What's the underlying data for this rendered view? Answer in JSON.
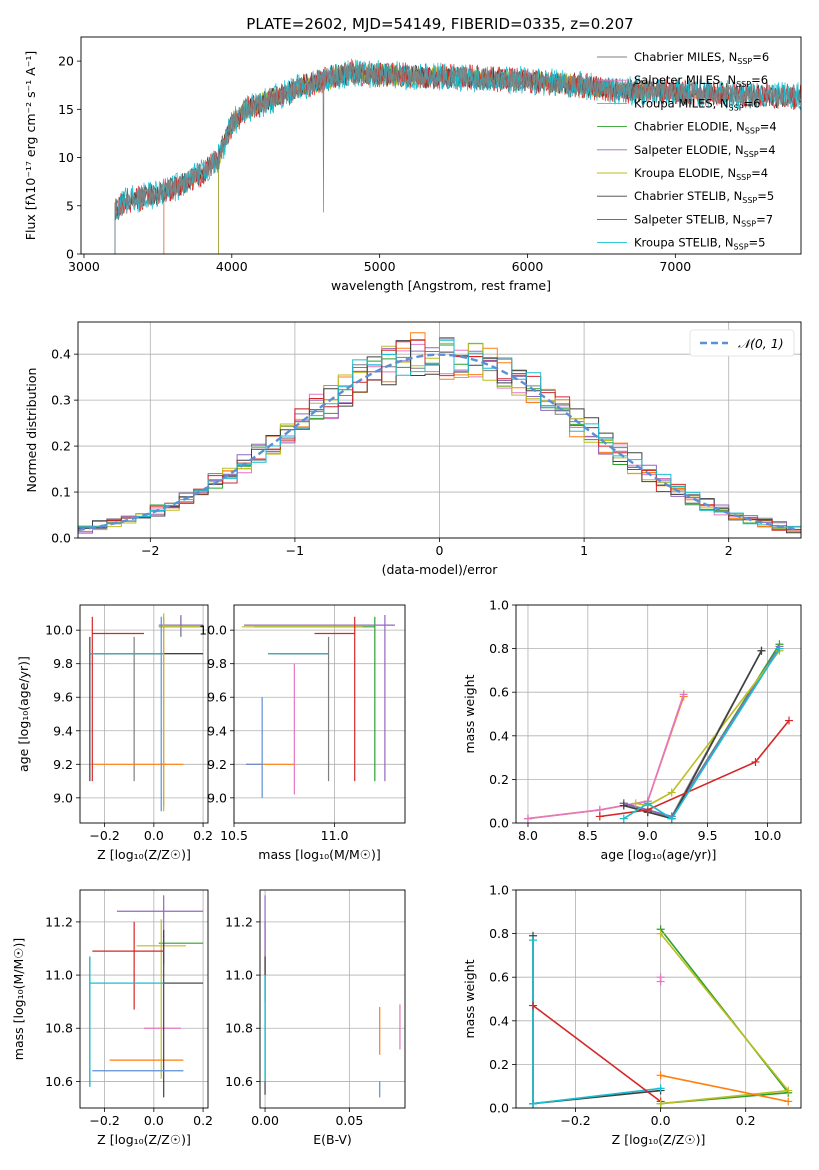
{
  "figure_title": "PLATE=2602, MJD=54149, FIBERID=0335, z=0.207",
  "colors": {
    "Chabrier MILES": "#7f7f7f",
    "Salpeter MILES": "#e377c2",
    "Kroupa MILES": "#ff7f0e",
    "Chabrier ELODIE": "#2ca02c",
    "Salpeter ELODIE": "#9467bd",
    "Kroupa ELODIE": "#bcbd22",
    "Chabrier STELIB": "#404040",
    "Salpeter STELIB": "#d62728",
    "Kroupa STELIB": "#17becf",
    "normal": "#5b8fd6"
  },
  "chart_data": [
    {
      "id": "spectrum",
      "type": "line",
      "xlabel": "wavelength [Angstrom, rest frame]",
      "ylabel": "Flux [fλ10⁻¹⁷ erg cm⁻² s⁻¹ A⁻¹]",
      "xlim": [
        2980,
        7850
      ],
      "ylim": [
        0,
        22.5
      ],
      "xticks": [
        3000,
        4000,
        5000,
        6000,
        7000
      ],
      "yticks": [
        0,
        5,
        10,
        15,
        20
      ],
      "grid": false,
      "legend_position": "upper-right",
      "legend": [
        {
          "key": "Chabrier MILES",
          "label": "Chabrier MILES, N",
          "sub": "SSP",
          "suffix": "=6"
        },
        {
          "key": "Salpeter MILES",
          "label": "Salpeter MILES, N",
          "sub": "SSP",
          "suffix": "=6"
        },
        {
          "key": "Kroupa MILES",
          "label": "Kroupa MILES, N",
          "sub": "SSP",
          "suffix": "=6"
        },
        {
          "key": "Chabrier ELODIE",
          "label": "Chabrier ELODIE, N",
          "sub": "SSP",
          "suffix": "=4"
        },
        {
          "key": "Salpeter ELODIE",
          "label": "Salpeter ELODIE, N",
          "sub": "SSP",
          "suffix": "=4"
        },
        {
          "key": "Kroupa ELODIE",
          "label": "Kroupa ELODIE, N",
          "sub": "SSP",
          "suffix": "=4"
        },
        {
          "key": "Chabrier STELIB",
          "label": "Chabrier STELIB, N",
          "sub": "SSP",
          "suffix": "=5"
        },
        {
          "key": "Salpeter STELIB",
          "label": "Salpeter STELIB, N",
          "sub": "SSP",
          "suffix": "=7"
        },
        {
          "key": "Kroupa STELIB",
          "label": "Kroupa STELIB, N",
          "sub": "SSP",
          "suffix": "=5"
        }
      ],
      "continuum": [
        [
          3210,
          4.6
        ],
        [
          3300,
          5.6
        ],
        [
          3500,
          6.2
        ],
        [
          3600,
          6.8
        ],
        [
          3700,
          7.5
        ],
        [
          3800,
          8.4
        ],
        [
          3900,
          9.6
        ],
        [
          3950,
          11.5
        ],
        [
          4000,
          13.5
        ],
        [
          4100,
          15.0
        ],
        [
          4300,
          16.2
        ],
        [
          4500,
          17.5
        ],
        [
          4800,
          18.8
        ],
        [
          5000,
          18.6
        ],
        [
          5300,
          18.4
        ],
        [
          5600,
          18.3
        ],
        [
          6000,
          18.0
        ],
        [
          6300,
          17.6
        ],
        [
          6600,
          17.0
        ],
        [
          7000,
          16.8
        ],
        [
          7400,
          16.5
        ],
        [
          7850,
          16.3
        ]
      ],
      "model_start": {
        "Chabrier MILES": 3540,
        "Salpeter MILES": 3540,
        "Kroupa MILES": 3540,
        "Chabrier ELODIE": 3910,
        "Salpeter ELODIE": 3910,
        "Kroupa ELODIE": 3910,
        "Chabrier STELIB": 3210,
        "Salpeter STELIB": 3210,
        "Kroupa STELIB": 3210
      },
      "model_end": {
        "Chabrier MILES": 7400,
        "Salpeter MILES": 7400,
        "Kroupa MILES": 7400,
        "Chabrier ELODIE": 6800,
        "Salpeter ELODIE": 6800,
        "Kroupa ELODIE": 6800,
        "Chabrier STELIB": 7850,
        "Salpeter STELIB": 7850,
        "Kroupa STELIB": 7850
      }
    },
    {
      "id": "residuals",
      "type": "line",
      "xlabel": "(data-model)/error",
      "ylabel": "Normed distribution",
      "xlim": [
        -2.5,
        2.5
      ],
      "ylim": [
        0,
        0.47
      ],
      "xticks": [
        -2,
        -1,
        0,
        1,
        2
      ],
      "yticks": [
        0.0,
        0.1,
        0.2,
        0.3,
        0.4
      ],
      "grid": true,
      "legend_position": "upper-right",
      "legend": [
        {
          "key": "normal",
          "label": "𝒩(0, 1)"
        }
      ],
      "bin_width": 0.1
    },
    {
      "id": "age_vs_Z",
      "type": "scatter",
      "xlabel": "Z [log₁₀(Z/Z☉)]",
      "ylabel": "age  [log₁₀(age/yr)]",
      "xlim": [
        -0.3,
        0.22
      ],
      "ylim": [
        8.85,
        10.15
      ],
      "xticks": [
        -0.2,
        0.0,
        0.2
      ],
      "yticks": [
        9.0,
        9.2,
        9.4,
        9.6,
        9.8,
        10.0
      ],
      "grid": true,
      "errorbars": [
        {
          "key": "Chabrier MILES",
          "x": -0.08,
          "y": 9.86,
          "xerr": [
            0.18,
            0.28
          ],
          "yerr": [
            0.76,
            0.1
          ]
        },
        {
          "key": "Salpeter MILES",
          "x": 0.04,
          "y": 9.2,
          "xerr": [
            0.01,
            0.01
          ],
          "yerr": [
            0.25,
            0.88
          ]
        },
        {
          "key": "Kroupa MILES",
          "x": -0.04,
          "y": 9.2,
          "xerr": [
            0.21,
            0.16
          ],
          "yerr": [
            0.0,
            0.0
          ]
        },
        {
          "key": "Chabrier ELODIE",
          "x": 0.11,
          "y": 10.02,
          "xerr": [
            0.09,
            0.09
          ],
          "yerr": [
            0.06,
            0.06
          ]
        },
        {
          "key": "Salpeter ELODIE",
          "x": 0.11,
          "y": 10.03,
          "xerr": [
            0.09,
            0.09
          ],
          "yerr": [
            0.06,
            0.06
          ]
        },
        {
          "key": "Kroupa ELODIE",
          "x": 0.11,
          "y": 10.02,
          "xerr": [
            0.09,
            0.09
          ],
          "yerr": [
            0.0,
            0.0
          ]
        },
        {
          "key": "Chabrier STELIB",
          "x": -0.26,
          "y": 9.86,
          "xerr": [
            0.0,
            0.46
          ],
          "yerr": [
            0.76,
            0.1
          ]
        },
        {
          "key": "Salpeter STELIB",
          "x": -0.25,
          "y": 9.98,
          "xerr": [
            0.0,
            0.21
          ],
          "yerr": [
            0.88,
            0.1
          ]
        },
        {
          "key": "Kroupa STELIB",
          "x": -0.26,
          "y": 9.86,
          "xerr": [
            0.0,
            0.3
          ],
          "yerr": [
            0.0,
            0.0
          ]
        },
        {
          "key": "normal",
          "x": 0.03,
          "y": 9.2,
          "xerr": [
            0.0,
            0.0
          ],
          "yerr": [
            0.28,
            0.88
          ]
        },
        {
          "key": "Kroupa ELODIE",
          "x": 0.04,
          "y": 9.5,
          "xerr": [
            0.0,
            0.0
          ],
          "yerr": [
            0.58,
            0.6
          ]
        }
      ]
    },
    {
      "id": "age_vs_mass",
      "type": "scatter",
      "xlabel": "mass [log₁₀(M/M☉)]",
      "ylabel": "",
      "xlim": [
        10.5,
        11.35
      ],
      "ylim": [
        8.85,
        10.15
      ],
      "xticks": [
        10.5,
        11.0
      ],
      "yticks": [
        9.0,
        9.2,
        9.4,
        9.6,
        9.8,
        10.0
      ],
      "grid": true,
      "errorbars": [
        {
          "key": "Chabrier MILES",
          "x": 10.97,
          "y": 9.86,
          "xerr": [
            0.24,
            0.0
          ],
          "yerr": [
            0.76,
            0.1
          ]
        },
        {
          "key": "Salpeter MILES",
          "x": 10.8,
          "y": 9.4,
          "xerr": [
            0.0,
            0.0
          ],
          "yerr": [
            0.38,
            0.4
          ]
        },
        {
          "key": "Kroupa MILES",
          "x": 10.68,
          "y": 9.2,
          "xerr": [
            0.12,
            0.12
          ],
          "yerr": [
            0.0,
            0.0
          ]
        },
        {
          "key": "Chabrier ELODIE",
          "x": 11.2,
          "y": 10.02,
          "xerr": [
            0.6,
            0.0
          ],
          "yerr": [
            0.92,
            0.06
          ]
        },
        {
          "key": "Salpeter ELODIE",
          "x": 11.25,
          "y": 10.03,
          "xerr": [
            0.7,
            0.05
          ],
          "yerr": [
            0.93,
            0.06
          ]
        },
        {
          "key": "Kroupa ELODIE",
          "x": 11.14,
          "y": 10.02,
          "xerr": [
            0.6,
            0.0
          ],
          "yerr": [
            0.0,
            0.0
          ]
        },
        {
          "key": "Chabrier STELIB",
          "x": 10.97,
          "y": 9.86,
          "xerr": [
            0.3,
            0.0
          ],
          "yerr": [
            0.0,
            0.0
          ]
        },
        {
          "key": "Salpeter STELIB",
          "x": 11.1,
          "y": 9.98,
          "xerr": [
            0.2,
            0.0
          ],
          "yerr": [
            0.88,
            0.1
          ]
        },
        {
          "key": "Kroupa STELIB",
          "x": 10.97,
          "y": 9.86,
          "xerr": [
            0.3,
            0.0
          ],
          "yerr": [
            0.0,
            0.0
          ]
        },
        {
          "key": "normal",
          "x": 10.64,
          "y": 9.2,
          "xerr": [
            0.08,
            0.0
          ],
          "yerr": [
            0.2,
            0.4
          ]
        }
      ]
    },
    {
      "id": "weight_vs_age",
      "type": "line",
      "xlabel": "age  [log₁₀(age/yr)]",
      "ylabel": "mass weight",
      "xlim": [
        7.9,
        10.28
      ],
      "ylim": [
        0.0,
        1.0
      ],
      "xticks": [
        8.0,
        8.5,
        9.0,
        9.5,
        10.0
      ],
      "yticks": [
        0.0,
        0.2,
        0.4,
        0.6,
        0.8,
        1.0
      ],
      "grid": true,
      "series": [
        {
          "key": "Kroupa MILES",
          "x": [
            8.0,
            8.6,
            9.0,
            9.3
          ],
          "y": [
            0.02,
            0.06,
            0.1,
            0.58
          ]
        },
        {
          "key": "Salpeter MILES",
          "x": [
            8.0,
            8.6,
            9.0,
            9.3
          ],
          "y": [
            0.02,
            0.06,
            0.1,
            0.59
          ]
        },
        {
          "key": "Chabrier MILES",
          "x": [
            8.8,
            9.0,
            9.2,
            9.95
          ],
          "y": [
            0.09,
            0.05,
            0.03,
            0.79
          ]
        },
        {
          "key": "Chabrier ELODIE",
          "x": [
            8.8,
            9.0,
            9.2,
            10.1
          ],
          "y": [
            0.09,
            0.06,
            0.03,
            0.82
          ]
        },
        {
          "key": "Salpeter ELODIE",
          "x": [
            8.8,
            9.0,
            9.2,
            10.1
          ],
          "y": [
            0.09,
            0.06,
            0.03,
            0.81
          ]
        },
        {
          "key": "Kroupa ELODIE",
          "x": [
            8.9,
            9.0,
            9.2,
            10.1
          ],
          "y": [
            0.09,
            0.08,
            0.14,
            0.79
          ]
        },
        {
          "key": "Chabrier STELIB",
          "x": [
            8.8,
            9.0,
            9.2,
            9.95
          ],
          "y": [
            0.08,
            0.05,
            0.02,
            0.79
          ]
        },
        {
          "key": "Salpeter STELIB",
          "x": [
            8.6,
            9.0,
            9.9,
            10.18
          ],
          "y": [
            0.03,
            0.06,
            0.28,
            0.47
          ]
        },
        {
          "key": "Kroupa STELIB",
          "x": [
            8.8,
            9.0,
            9.2,
            10.1
          ],
          "y": [
            0.02,
            0.09,
            0.02,
            0.8
          ]
        }
      ]
    },
    {
      "id": "mass_vs_Z",
      "type": "scatter",
      "xlabel": "Z [log₁₀(Z/Z☉)]",
      "ylabel": "mass [log₁₀(M/M☉)]",
      "xlim": [
        -0.3,
        0.22
      ],
      "ylim": [
        10.5,
        11.32
      ],
      "xticks": [
        -0.2,
        0.0,
        0.2
      ],
      "yticks": [
        10.6,
        10.8,
        11.0,
        11.2
      ],
      "grid": true,
      "errorbars": [
        {
          "key": "Chabrier MILES",
          "x": -0.26,
          "y": 10.97,
          "xerr": [
            0.0,
            0.46
          ],
          "yerr": [
            0.39,
            0.1
          ]
        },
        {
          "key": "Salpeter MILES",
          "x": 0.03,
          "y": 10.8,
          "xerr": [
            0.07,
            0.08
          ],
          "yerr": [
            0.0,
            0.0
          ]
        },
        {
          "key": "Kroupa MILES",
          "x": 0.03,
          "y": 10.68,
          "xerr": [
            0.21,
            0.09
          ],
          "yerr": [
            0.0,
            0.0
          ]
        },
        {
          "key": "Chabrier ELODIE",
          "x": 0.11,
          "y": 11.12,
          "xerr": [
            0.09,
            0.09
          ],
          "yerr": [
            0.0,
            0.0
          ]
        },
        {
          "key": "Salpeter ELODIE",
          "x": 0.04,
          "y": 11.24,
          "xerr": [
            0.19,
            0.16
          ],
          "yerr": [
            0.2,
            0.06
          ]
        },
        {
          "key": "Kroupa ELODIE",
          "x": 0.03,
          "y": 11.11,
          "xerr": [
            0.1,
            0.1
          ],
          "yerr": [
            0.5,
            0.1
          ]
        },
        {
          "key": "Chabrier STELIB",
          "x": 0.04,
          "y": 10.97,
          "xerr": [
            0.0,
            0.16
          ],
          "yerr": [
            0.43,
            0.2
          ]
        },
        {
          "key": "Salpeter STELIB",
          "x": -0.08,
          "y": 11.09,
          "xerr": [
            0.17,
            0.12
          ],
          "yerr": [
            0.22,
            0.11
          ]
        },
        {
          "key": "Kroupa STELIB",
          "x": -0.26,
          "y": 10.97,
          "xerr": [
            0.0,
            0.3
          ],
          "yerr": [
            0.39,
            0.1
          ]
        },
        {
          "key": "normal",
          "x": -0.05,
          "y": 10.64,
          "xerr": [
            0.2,
            0.17
          ],
          "yerr": [
            0.0,
            0.0
          ]
        }
      ]
    },
    {
      "id": "mass_vs_ebv",
      "type": "scatter",
      "xlabel": "E(B-V)",
      "ylabel": "",
      "xlim": [
        -0.003,
        0.083
      ],
      "ylim": [
        10.5,
        11.32
      ],
      "xticks": [
        0.0,
        0.05
      ],
      "yticks": [
        10.6,
        10.8,
        11.0,
        11.2
      ],
      "grid": true,
      "errorbars": [
        {
          "key": "Salpeter STELIB",
          "x": 0.0,
          "y": 11.1,
          "xerr": [
            0.0,
            0.0
          ],
          "yerr": [
            0.1,
            0.1
          ]
        },
        {
          "key": "Salpeter ELODIE",
          "x": 0.0,
          "y": 11.1,
          "xerr": [
            0.0,
            0.0
          ],
          "yerr": [
            0.2,
            0.2
          ]
        },
        {
          "key": "Chabrier STELIB",
          "x": 0.0,
          "y": 10.8,
          "xerr": [
            0.0,
            0.0
          ],
          "yerr": [
            0.25,
            0.27
          ]
        },
        {
          "key": "Kroupa STELIB",
          "x": 0.0,
          "y": 10.8,
          "xerr": [
            0.0,
            0.0
          ],
          "yerr": [
            0.2,
            0.2
          ]
        },
        {
          "key": "Kroupa MILES",
          "x": 0.068,
          "y": 10.7,
          "xerr": [
            0.0,
            0.0
          ],
          "yerr": [
            0.0,
            0.18
          ]
        },
        {
          "key": "normal",
          "x": 0.068,
          "y": 10.6,
          "xerr": [
            0.0,
            0.0
          ],
          "yerr": [
            0.06,
            0.0
          ]
        },
        {
          "key": "Salpeter MILES",
          "x": 0.08,
          "y": 10.8,
          "xerr": [
            0.0,
            0.0
          ],
          "yerr": [
            0.08,
            0.09
          ]
        }
      ]
    },
    {
      "id": "weight_vs_Z",
      "type": "line",
      "xlabel": "Z [log₁₀(Z/Z☉)]",
      "ylabel": "mass weight",
      "xlim": [
        -0.34,
        0.33
      ],
      "ylim": [
        0.0,
        1.0
      ],
      "xticks": [
        -0.2,
        0.0,
        0.2
      ],
      "yticks": [
        0.0,
        0.2,
        0.4,
        0.6,
        0.8,
        1.0
      ],
      "grid": true,
      "series": [
        {
          "key": "Chabrier STELIB",
          "x": [
            -0.3,
            -0.3,
            0.0,
            -0.3
          ],
          "y": [
            0.79,
            0.02,
            0.08,
            0.02
          ]
        },
        {
          "key": "Kroupa STELIB",
          "x": [
            -0.3,
            -0.3,
            0.0,
            -0.3
          ],
          "y": [
            0.77,
            0.02,
            0.09,
            0.02
          ]
        },
        {
          "key": "Salpeter STELIB",
          "x": [
            -0.3,
            0.0
          ],
          "y": [
            0.47,
            0.03
          ]
        },
        {
          "key": "Chabrier ELODIE",
          "x": [
            0.0,
            0.3,
            0.0
          ],
          "y": [
            0.82,
            0.07,
            0.02
          ]
        },
        {
          "key": "Kroupa ELODIE",
          "x": [
            0.0,
            0.3,
            0.0
          ],
          "y": [
            0.8,
            0.08,
            0.02
          ]
        },
        {
          "key": "Kroupa MILES",
          "x": [
            0.0,
            0.3
          ],
          "y": [
            0.15,
            0.03
          ]
        },
        {
          "key": "Salpeter MILES",
          "x": [
            0.0,
            0.0
          ],
          "y": [
            0.58,
            0.6
          ]
        }
      ]
    }
  ]
}
